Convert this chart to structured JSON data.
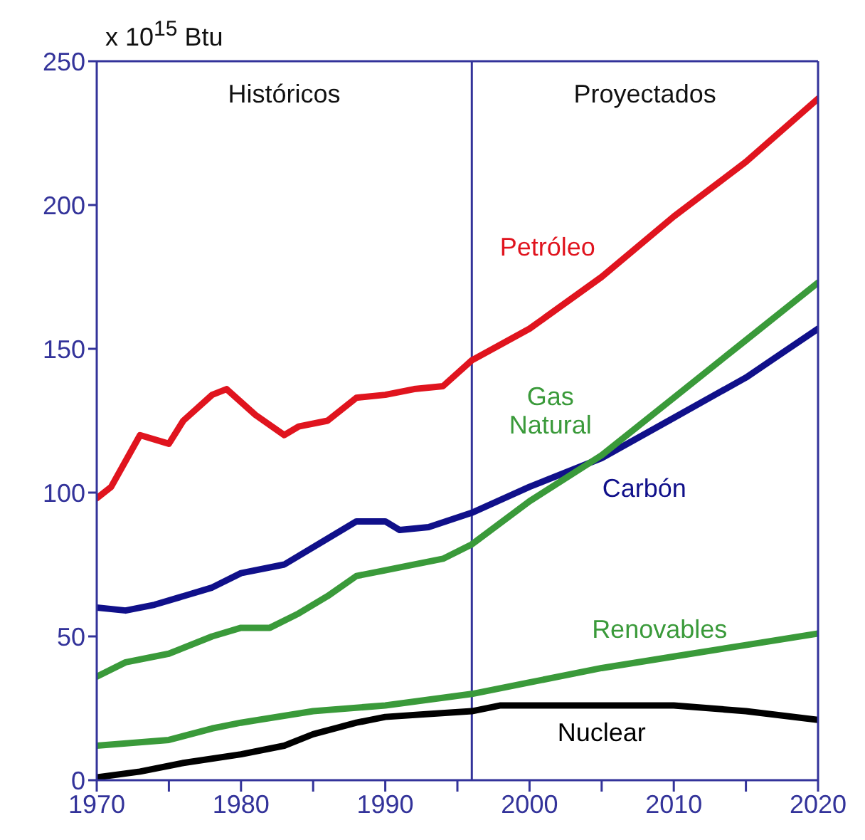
{
  "chart_data": {
    "type": "line",
    "ylabel": "x 10$^{15}$ Btu",
    "xlim": [
      1970,
      2020
    ],
    "ylim": [
      0,
      250
    ],
    "xticks": [
      1970,
      {
        "value": 1975,
        "label": null
      },
      1980,
      {
        "value": 1985,
        "label": null
      },
      1990,
      {
        "value": 1995,
        "label": null
      },
      2000,
      {
        "value": 2005,
        "label": null
      },
      2010,
      {
        "value": 2015,
        "label": null
      },
      2020
    ],
    "yticks": [
      0,
      50,
      100,
      150,
      200,
      250
    ],
    "marker": "none",
    "line_style": "solid",
    "series": [
      {
        "name": "Petróleo",
        "color": "#e0141e",
        "x": [
          1970,
          1971,
          1973,
          1975,
          1976,
          1978,
          1979,
          1981,
          1983,
          1984,
          1986,
          1988,
          1990,
          1992,
          1994,
          1996,
          2000,
          2005,
          2010,
          2015,
          2020
        ],
        "values": [
          98,
          102,
          120,
          117,
          125,
          134,
          136,
          127,
          120,
          123,
          125,
          133,
          134,
          136,
          137,
          146,
          157,
          175,
          196,
          215,
          237
        ]
      },
      {
        "name": "Carbón",
        "color": "#10108a",
        "x": [
          1970,
          1972,
          1974,
          1976,
          1978,
          1980,
          1983,
          1986,
          1988,
          1990,
          1991,
          1993,
          1996,
          2000,
          2005,
          2010,
          2015,
          2020
        ],
        "values": [
          60,
          59,
          61,
          64,
          67,
          72,
          75,
          84,
          90,
          90,
          87,
          88,
          93,
          102,
          112,
          126,
          140,
          157
        ]
      },
      {
        "name": "Gas\nNatural",
        "color": "#3a9a3a",
        "x": [
          1970,
          1972,
          1975,
          1978,
          1980,
          1982,
          1984,
          1986,
          1988,
          1990,
          1994,
          1996,
          2000,
          2005,
          2010,
          2015,
          2020
        ],
        "values": [
          36,
          41,
          44,
          50,
          53,
          53,
          58,
          64,
          71,
          73,
          77,
          82,
          97,
          113,
          133,
          153,
          173
        ]
      },
      {
        "name": "Renovables",
        "color": "#3a9a3a",
        "x": [
          1970,
          1975,
          1978,
          1980,
          1985,
          1990,
          1996,
          2000,
          2005,
          2010,
          2015,
          2020
        ],
        "values": [
          12,
          14,
          18,
          20,
          24,
          26,
          30,
          34,
          39,
          43,
          47,
          51
        ]
      },
      {
        "name": "Nuclear",
        "color": "#000000",
        "x": [
          1970,
          1973,
          1976,
          1980,
          1983,
          1985,
          1988,
          1990,
          1993,
          1996,
          1998,
          2005,
          2010,
          2015,
          2020
        ],
        "values": [
          1,
          3,
          6,
          9,
          12,
          16,
          20,
          22,
          23,
          24,
          26,
          26,
          26,
          24,
          21
        ]
      }
    ],
    "ref_lines": [
      {
        "axis": "x",
        "value": 1996,
        "color": "#33339a"
      }
    ],
    "annotations": [
      "Históricos",
      "Proyectados"
    ]
  }
}
